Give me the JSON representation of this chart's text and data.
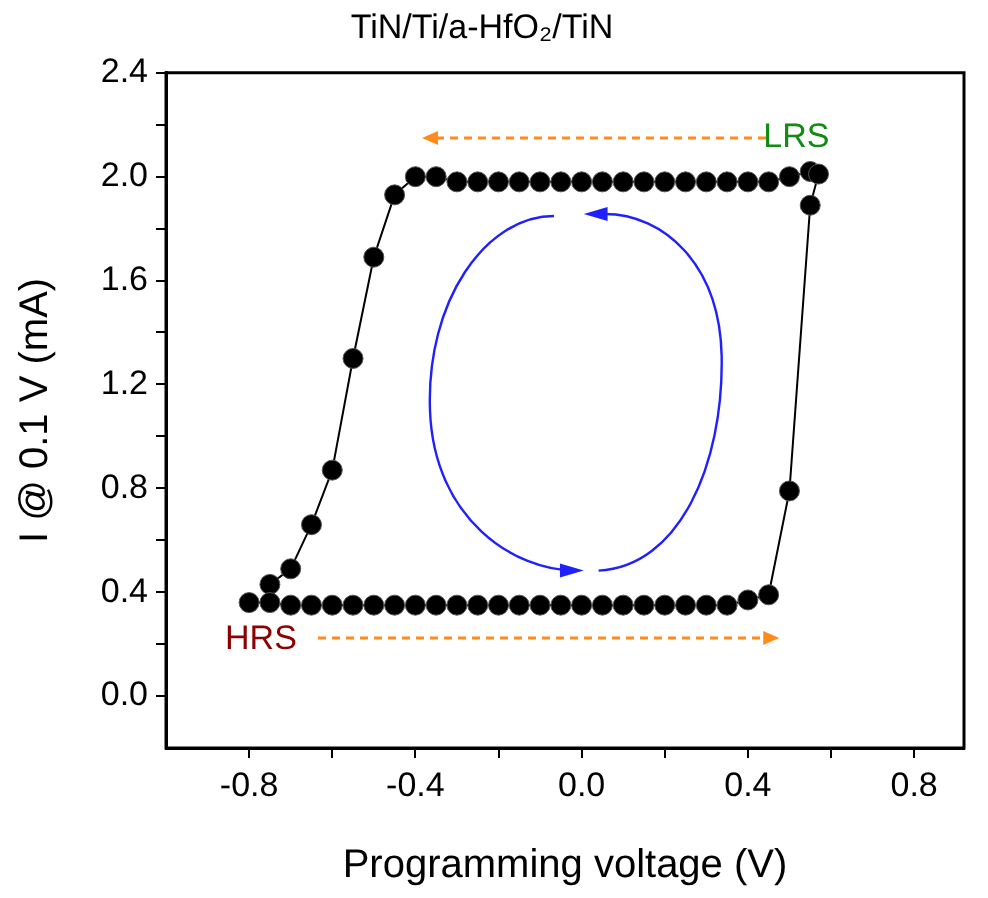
{
  "chart_data": {
    "type": "line",
    "title": "TiN/Ti/a-HfO₂/TiN",
    "xlabel": "Programming voltage (V)",
    "ylabel": "I @ 0.1 V (mA)",
    "series": [
      {
        "color": "#000000",
        "x": [
          -0.8,
          -0.75,
          -0.7,
          -0.65,
          -0.6,
          -0.55,
          -0.5,
          -0.45,
          -0.4,
          -0.35,
          -0.3,
          -0.25,
          -0.2,
          -0.15,
          -0.1,
          -0.05,
          0.0,
          0.05,
          0.1,
          0.15,
          0.2,
          0.25,
          0.3,
          0.35,
          0.4,
          0.45,
          0.5,
          0.55,
          0.57
        ],
        "values": [
          0.36,
          0.36,
          0.35,
          0.35,
          0.35,
          0.35,
          0.35,
          0.35,
          0.35,
          0.35,
          0.35,
          0.35,
          0.35,
          0.35,
          0.35,
          0.35,
          0.35,
          0.35,
          0.35,
          0.35,
          0.35,
          0.35,
          0.35,
          0.35,
          0.37,
          0.39,
          0.79,
          1.89,
          2.01
        ]
      },
      {
        "color": "#000000",
        "x": [
          -0.75,
          -0.7,
          -0.65,
          -0.6,
          -0.55,
          -0.5,
          -0.45,
          -0.4,
          -0.35,
          -0.3,
          -0.25,
          -0.2,
          -0.15,
          -0.1,
          -0.05,
          0.0,
          0.05,
          0.1,
          0.15,
          0.2,
          0.25,
          0.3,
          0.35,
          0.4,
          0.45,
          0.5,
          0.55
        ],
        "values": [
          0.43,
          0.49,
          0.66,
          0.87,
          1.3,
          1.69,
          1.93,
          2.0,
          2.0,
          1.98,
          1.98,
          1.98,
          1.98,
          1.98,
          1.98,
          1.98,
          1.98,
          1.98,
          1.98,
          1.98,
          1.98,
          1.98,
          1.98,
          1.98,
          1.98,
          2.0,
          2.02
        ]
      }
    ],
    "xlim": [
      -1.0,
      0.92
    ],
    "xticks": [
      -0.8,
      {
        "value": -0.6,
        "label": null
      },
      -0.4,
      {
        "value": -0.2,
        "label": null
      },
      {
        "value": 0,
        "label": "0.0"
      },
      {
        "value": 0.2,
        "label": null
      },
      0.4,
      {
        "value": 0.6,
        "label": null
      },
      0.8
    ],
    "ylim": [
      -0.2,
      2.4
    ],
    "yticks": [
      {
        "value": 0,
        "label": "0.0"
      },
      {
        "value": 0.2,
        "label": null
      },
      0.4,
      {
        "value": 0.6,
        "label": null
      },
      0.8,
      {
        "value": 1.0,
        "label": null
      },
      1.2,
      {
        "value": 1.4,
        "label": null
      },
      1.6,
      {
        "value": 1.8,
        "label": null
      },
      {
        "value": 2,
        "label": "2.0"
      },
      {
        "value": 2.2,
        "label": null
      },
      2.4
    ],
    "annotations": [
      "LRS",
      "HRS"
    ],
    "grid": false,
    "legend": false,
    "marker": "circle",
    "line_style": "solid"
  }
}
